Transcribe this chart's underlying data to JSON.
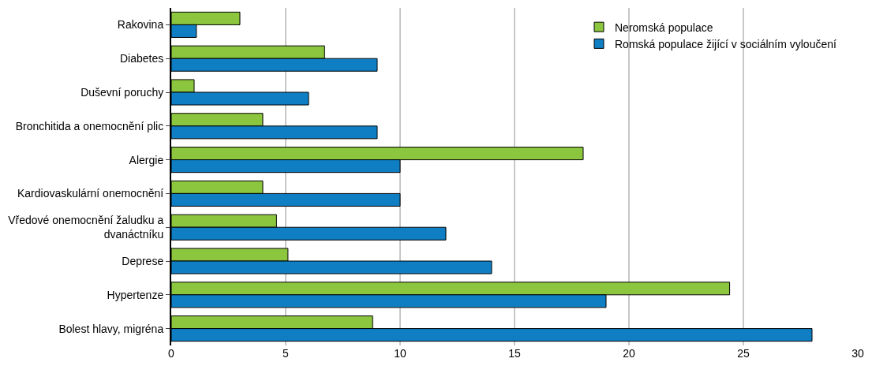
{
  "chart_data": {
    "type": "bar",
    "orientation": "horizontal",
    "categories": [
      "Rakovina",
      "Diabetes",
      "Duševní poruchy",
      "Bronchitida a onemocnění plic",
      "Alergie",
      "Kardiovaskulární onemocnění",
      "Vředové onemocnění žaludku a dvanáctníku",
      "Deprese",
      "Hypertenze",
      "Bolest hlavy, migréna"
    ],
    "series": [
      {
        "name": "Neromská populace",
        "color": "#8cc63f",
        "values": [
          3.0,
          6.7,
          1.0,
          4.0,
          18.0,
          4.0,
          4.6,
          5.1,
          24.4,
          8.8
        ]
      },
      {
        "name": "Romská populace žijící v sociálním vyloučení",
        "color": "#0f7ec2",
        "values": [
          1.1,
          9.0,
          6.0,
          9.0,
          10.0,
          10.0,
          12.0,
          14.0,
          19.0,
          28.0
        ]
      }
    ],
    "xlim": [
      0,
      30
    ],
    "xticks": [
      0,
      5,
      10,
      15,
      20,
      25,
      30
    ],
    "grid": "x",
    "legend": "top right"
  }
}
